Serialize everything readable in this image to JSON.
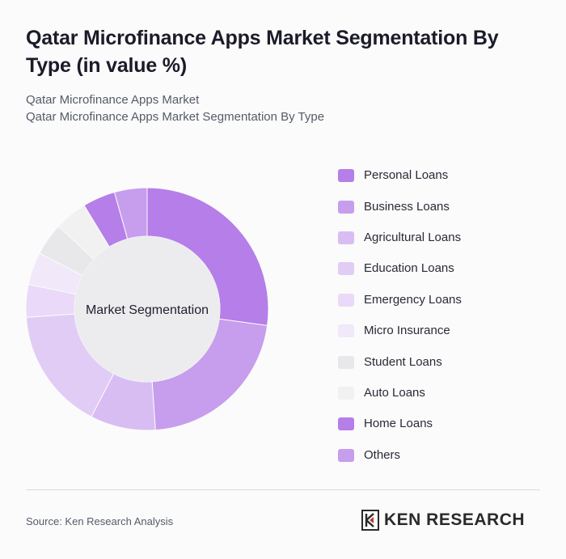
{
  "header": {
    "title": "Qatar Microfinance Apps Market Segmentation By Type (in value %)",
    "subtitle_line1": "Qatar Microfinance Apps Market",
    "subtitle_line2": "Qatar Microfinance Apps Market Segmentation By Type"
  },
  "chart_data": {
    "type": "donut",
    "center_label": "Market Segmentation",
    "categories": [
      "Personal Loans",
      "Business Loans",
      "Agricultural Loans",
      "Education Loans",
      "Emergency Loans",
      "Micro Insurance",
      "Student Loans",
      "Auto Loans",
      "Home Loans",
      "Others"
    ],
    "values": [
      25,
      20,
      8,
      15,
      4,
      4,
      4,
      4,
      4,
      4
    ],
    "colors": [
      "#b67ee8",
      "#c79ded",
      "#d8bdf3",
      "#e1ccf5",
      "#ead9f8",
      "#f1e8fa",
      "#e8e8ea",
      "#f1f1f2",
      "#b67ee8",
      "#c79ded"
    ],
    "legend_position": "right"
  },
  "footer": {
    "source": "Source: Ken Research Analysis",
    "logo_text": "KEN RESEARCH",
    "logo_icon": "ken-research-logo-icon"
  }
}
